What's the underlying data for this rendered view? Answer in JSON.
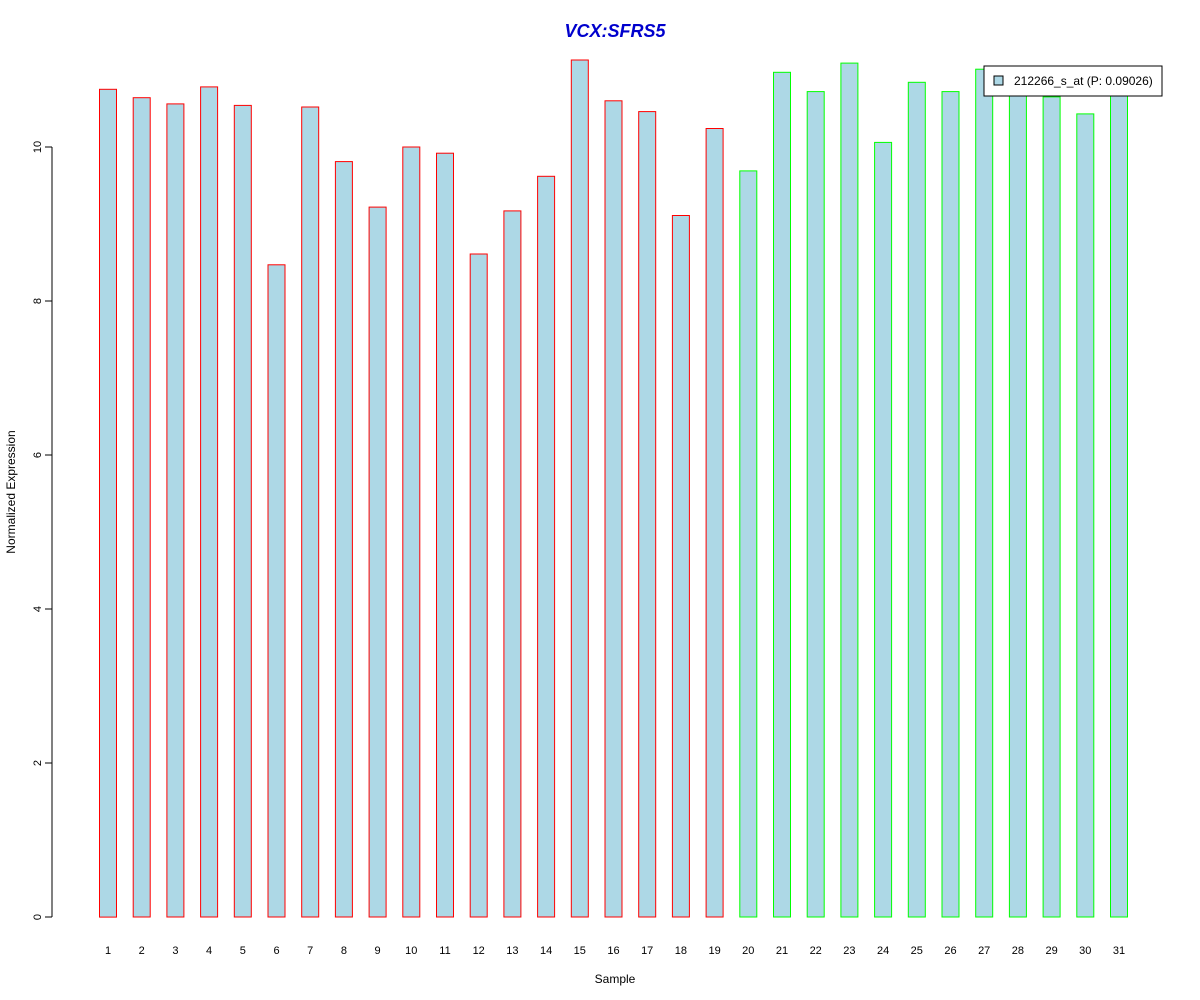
{
  "chart_data": {
    "type": "bar",
    "title": "VCX:SFRS5",
    "xlabel": "Sample",
    "ylabel": "Normalized Expression",
    "ylim": [
      0,
      11.2
    ],
    "yticks": [
      0,
      2,
      4,
      6,
      8,
      10
    ],
    "grid": false,
    "legend_position": "top-right",
    "categories": [
      "1",
      "2",
      "3",
      "4",
      "5",
      "6",
      "7",
      "8",
      "9",
      "10",
      "11",
      "12",
      "13",
      "14",
      "15",
      "16",
      "17",
      "18",
      "19",
      "20",
      "21",
      "22",
      "23",
      "24",
      "25",
      "26",
      "27",
      "28",
      "29",
      "30",
      "31"
    ],
    "series": [
      {
        "name": "212266_s_at (P: 0.09026)",
        "values": [
          10.75,
          10.64,
          10.56,
          10.78,
          10.54,
          8.47,
          10.52,
          9.81,
          9.22,
          10.0,
          9.92,
          8.61,
          9.17,
          9.62,
          11.13,
          10.6,
          10.46,
          9.11,
          10.24,
          9.69,
          10.97,
          10.72,
          11.09,
          10.06,
          10.84,
          10.72,
          11.01,
          10.83,
          10.65,
          10.43,
          10.74
        ]
      }
    ],
    "bar_outline_colors": [
      "#ff0000",
      "#ff0000",
      "#ff0000",
      "#ff0000",
      "#ff0000",
      "#ff0000",
      "#ff0000",
      "#ff0000",
      "#ff0000",
      "#ff0000",
      "#ff0000",
      "#ff0000",
      "#ff0000",
      "#ff0000",
      "#ff0000",
      "#ff0000",
      "#ff0000",
      "#ff0000",
      "#ff0000",
      "#00ff00",
      "#00ff00",
      "#00ff00",
      "#00ff00",
      "#00ff00",
      "#00ff00",
      "#00ff00",
      "#00ff00",
      "#00ff00",
      "#00ff00",
      "#00ff00",
      "#00ff00"
    ],
    "colors": {
      "bar_fill": "#add8e6",
      "title": "#0000cd",
      "axis": "#000000"
    }
  }
}
